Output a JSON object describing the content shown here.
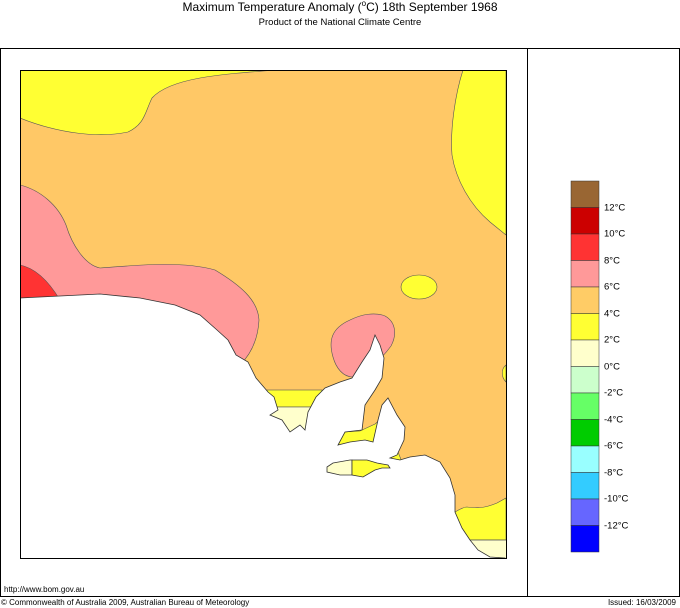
{
  "header": {
    "title_prefix": "Maximum Temperature Anomaly (",
    "title_degree": "o",
    "title_suffix": "C)  18th September 1968",
    "subtitle": "Product of the National Climate Centre"
  },
  "footer": {
    "url": "http://www.bom.gov.au",
    "copyright": "© Commonwealth of Australia 2009, Australian Bureau of Meteorology",
    "issued": "Issued: 16/03/2009"
  },
  "legend": {
    "unit": "°C",
    "colors": [
      "#996633",
      "#CC0000",
      "#FF3333",
      "#FF9999",
      "#FFCC66",
      "#FFFF33",
      "#FFFFCC",
      "#CCFFCC",
      "#66FF66",
      "#00CC00",
      "#99FFFF",
      "#33CCFF",
      "#6666FF",
      "#0000FF"
    ],
    "labels": [
      "12°C",
      "10°C",
      "8°C",
      "6°C",
      "4°C",
      "2°C",
      "0°C",
      "-2°C",
      "-4°C",
      "-6°C",
      "-8°C",
      "-10°C",
      "-12°C"
    ]
  },
  "map": {
    "ocean_color": "#FFFFFF",
    "region_colors": {
      "8-10": "#FF3333",
      "6-8": "#FF9999",
      "4-6": "#FFCC66",
      "2-4": "#FFFF33",
      "0-2": "#FFFFCC"
    }
  }
}
